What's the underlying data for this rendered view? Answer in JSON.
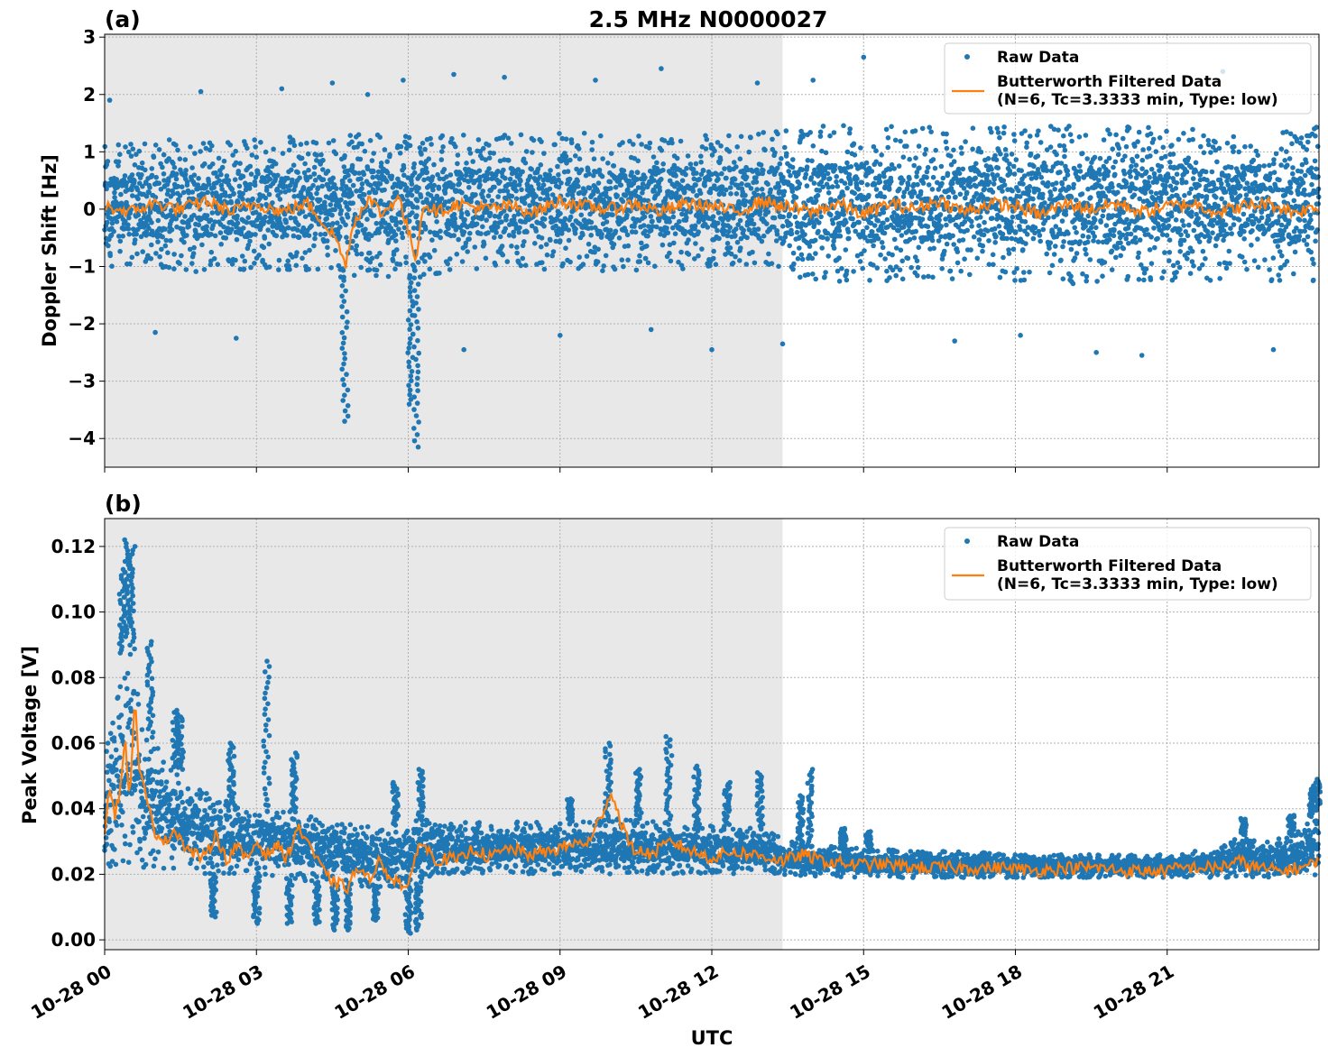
{
  "title": "2.5 MHz N0000027",
  "colors": {
    "raw": "#1f77b4",
    "filtered": "#ff7f0e",
    "shade": "#e8e8e8",
    "grid": "#b0b0b0"
  },
  "chart_data": [
    {
      "type": "scatter",
      "panel_label": "(a)",
      "title": "2.5 MHz N0000027",
      "ylabel": "Doppler Shift [Hz]",
      "xlabel": "",
      "x_unit": "hours since 10-28 00 UTC",
      "xlim": [
        0,
        24
      ],
      "ylim": [
        -4.5,
        3.05
      ],
      "yticks": [
        3,
        2,
        1,
        0,
        -1,
        -2,
        -3,
        -4
      ],
      "ytick_labels": [
        "3",
        "2",
        "1",
        "0",
        "−1",
        "−2",
        "−3",
        "−4"
      ],
      "grid": true,
      "shaded_region": [
        0,
        13.4
      ],
      "legend": {
        "position": "upper right",
        "entries": [
          {
            "label": "Raw Data",
            "marker": "point"
          },
          {
            "label": "Butterworth Filtered Data\n(N=6, Tc=3.3333 min, Type: low)",
            "marker": "line"
          }
        ]
      },
      "series": [
        {
          "name": "Raw Data",
          "style": "points",
          "band_x": [
            0,
            1,
            2,
            3,
            4,
            4.6,
            5,
            6,
            6.2,
            7,
            8,
            9,
            10,
            11,
            12,
            13,
            13.4,
            14,
            15,
            16,
            17,
            18,
            19,
            20,
            21,
            22,
            23,
            24
          ],
          "band_low": [
            -1.0,
            -1.05,
            -1.1,
            -1.05,
            -1.1,
            -1.3,
            -1.15,
            -1.2,
            -1.2,
            -1.05,
            -1.05,
            -1.05,
            -1.1,
            -1.05,
            -1.05,
            -1.1,
            -1.15,
            -1.25,
            -1.3,
            -1.25,
            -1.25,
            -1.25,
            -1.3,
            -1.3,
            -1.25,
            -1.25,
            -1.25,
            -1.25
          ],
          "band_high": [
            1.1,
            1.2,
            1.25,
            1.25,
            1.3,
            1.3,
            1.3,
            1.35,
            1.3,
            1.3,
            1.3,
            1.35,
            1.3,
            1.3,
            1.3,
            1.35,
            1.4,
            1.45,
            1.5,
            1.45,
            1.45,
            1.45,
            1.45,
            1.45,
            1.45,
            1.45,
            1.45,
            1.45
          ],
          "dips": [
            {
              "x": 4.75,
              "y": -3.7
            },
            {
              "x": 6.05,
              "y": -3.4
            },
            {
              "x": 6.15,
              "y": -4.15
            }
          ],
          "outliers": [
            {
              "x": 0.1,
              "y": 1.9
            },
            {
              "x": 1.0,
              "y": -2.15
            },
            {
              "x": 1.9,
              "y": 2.05
            },
            {
              "x": 2.6,
              "y": -2.25
            },
            {
              "x": 3.5,
              "y": 2.1
            },
            {
              "x": 4.5,
              "y": 2.2
            },
            {
              "x": 5.2,
              "y": 2.0
            },
            {
              "x": 5.9,
              "y": 2.25
            },
            {
              "x": 6.9,
              "y": 2.35
            },
            {
              "x": 7.1,
              "y": -2.45
            },
            {
              "x": 7.9,
              "y": 2.3
            },
            {
              "x": 9.0,
              "y": -2.2
            },
            {
              "x": 9.7,
              "y": 2.25
            },
            {
              "x": 10.8,
              "y": -2.1
            },
            {
              "x": 11.0,
              "y": 2.45
            },
            {
              "x": 12.0,
              "y": -2.45
            },
            {
              "x": 12.9,
              "y": 2.2
            },
            {
              "x": 13.4,
              "y": -2.35
            },
            {
              "x": 14.0,
              "y": 2.25
            },
            {
              "x": 15.0,
              "y": 2.65
            },
            {
              "x": 16.8,
              "y": -2.3
            },
            {
              "x": 18.1,
              "y": -2.2
            },
            {
              "x": 19.6,
              "y": -2.5
            },
            {
              "x": 20.5,
              "y": -2.55
            },
            {
              "x": 22.1,
              "y": 2.4
            },
            {
              "x": 23.1,
              "y": -2.45
            }
          ]
        },
        {
          "name": "Butterworth Filtered Data\n(N=6, Tc=3.3333 min, Type: low)",
          "style": "line",
          "x": [
            0,
            0.5,
            1,
            1.5,
            2,
            2.5,
            3,
            3.5,
            4,
            4.3,
            4.6,
            4.75,
            4.9,
            5.2,
            5.5,
            5.8,
            6.0,
            6.15,
            6.3,
            6.6,
            7,
            7.5,
            8,
            8.5,
            9,
            9.5,
            10,
            10.5,
            11,
            11.5,
            12,
            12.5,
            13,
            13.4,
            14,
            14.5,
            15,
            15.5,
            16,
            16.5,
            17,
            17.5,
            18,
            18.5,
            19,
            19.5,
            20,
            20.5,
            21,
            21.5,
            22,
            22.5,
            23,
            23.5,
            24
          ],
          "y": [
            0.05,
            -0.05,
            0.1,
            0.0,
            0.15,
            -0.05,
            0.1,
            -0.05,
            0.1,
            -0.2,
            -0.55,
            -1.0,
            -0.3,
            0.2,
            -0.1,
            0.25,
            -0.4,
            -0.85,
            0.1,
            -0.05,
            0.1,
            0.0,
            0.05,
            -0.05,
            0.15,
            0.05,
            0.0,
            0.1,
            -0.05,
            0.1,
            0.05,
            -0.05,
            0.15,
            0.05,
            -0.05,
            0.1,
            -0.1,
            0.1,
            0.0,
            0.15,
            -0.05,
            0.1,
            0.05,
            -0.1,
            0.1,
            0.0,
            0.1,
            -0.05,
            0.05,
            0.1,
            -0.05,
            0.05,
            0.1,
            -0.05,
            0.05
          ]
        }
      ]
    },
    {
      "type": "scatter",
      "panel_label": "(b)",
      "title": "",
      "ylabel": "Peak Voltage [V]",
      "xlabel": "UTC",
      "x_unit": "hours since 10-28 00 UTC",
      "xlim": [
        0,
        24
      ],
      "ylim": [
        -0.003,
        0.1285
      ],
      "yticks": [
        0.12,
        0.1,
        0.08,
        0.06,
        0.04,
        0.02,
        0.0
      ],
      "ytick_labels": [
        "0.12",
        "0.10",
        "0.08",
        "0.06",
        "0.04",
        "0.02",
        "0.00"
      ],
      "xticks": [
        0,
        3,
        6,
        9,
        12,
        15,
        18,
        21
      ],
      "xtick_labels": [
        "10-28 00",
        "10-28 03",
        "10-28 06",
        "10-28 09",
        "10-28 12",
        "10-28 15",
        "10-28 18",
        "10-28 21"
      ],
      "grid": true,
      "shaded_region": [
        0,
        13.4
      ],
      "legend": {
        "position": "upper right",
        "entries": [
          {
            "label": "Raw Data",
            "marker": "point"
          },
          {
            "label": "Butterworth Filtered Data\n(N=6, Tc=3.3333 min, Type: low)",
            "marker": "line"
          }
        ]
      },
      "series": [
        {
          "name": "Raw Data",
          "style": "points",
          "band_x": [
            0,
            0.3,
            0.5,
            0.7,
            1.0,
            1.5,
            2.0,
            2.5,
            3.0,
            3.5,
            4.0,
            4.5,
            5.0,
            5.5,
            6.0,
            6.5,
            7,
            8,
            9,
            10,
            11,
            12,
            13,
            13.4,
            14,
            15,
            16,
            17,
            18,
            19,
            20,
            21,
            22,
            22.5,
            23,
            23.5,
            24
          ],
          "band_low": [
            0.021,
            0.022,
            0.023,
            0.022,
            0.021,
            0.02,
            0.02,
            0.02,
            0.019,
            0.019,
            0.018,
            0.017,
            0.016,
            0.016,
            0.016,
            0.02,
            0.02,
            0.02,
            0.02,
            0.02,
            0.02,
            0.02,
            0.02,
            0.02,
            0.019,
            0.019,
            0.019,
            0.019,
            0.019,
            0.019,
            0.019,
            0.019,
            0.019,
            0.019,
            0.019,
            0.019,
            0.019
          ],
          "band_high": [
            0.058,
            0.085,
            0.095,
            0.07,
            0.06,
            0.052,
            0.045,
            0.042,
            0.042,
            0.04,
            0.038,
            0.036,
            0.035,
            0.034,
            0.036,
            0.037,
            0.036,
            0.036,
            0.036,
            0.037,
            0.036,
            0.035,
            0.034,
            0.031,
            0.029,
            0.028,
            0.027,
            0.027,
            0.026,
            0.026,
            0.026,
            0.026,
            0.028,
            0.032,
            0.03,
            0.032,
            0.04
          ],
          "spikes": [
            {
              "x": 0.35,
              "y": 0.113
            },
            {
              "x": 0.45,
              "y": 0.122
            },
            {
              "x": 0.55,
              "y": 0.12
            },
            {
              "x": 0.9,
              "y": 0.091
            },
            {
              "x": 1.4,
              "y": 0.07
            },
            {
              "x": 1.5,
              "y": 0.068
            },
            {
              "x": 2.5,
              "y": 0.06
            },
            {
              "x": 3.2,
              "y": 0.085
            },
            {
              "x": 3.75,
              "y": 0.057
            },
            {
              "x": 5.75,
              "y": 0.048
            },
            {
              "x": 6.25,
              "y": 0.052
            },
            {
              "x": 9.2,
              "y": 0.043
            },
            {
              "x": 9.95,
              "y": 0.06
            },
            {
              "x": 10.55,
              "y": 0.052
            },
            {
              "x": 11.15,
              "y": 0.062
            },
            {
              "x": 11.7,
              "y": 0.053
            },
            {
              "x": 12.3,
              "y": 0.048
            },
            {
              "x": 12.95,
              "y": 0.051
            },
            {
              "x": 13.75,
              "y": 0.044
            },
            {
              "x": 13.95,
              "y": 0.052
            },
            {
              "x": 14.6,
              "y": 0.034
            },
            {
              "x": 15.1,
              "y": 0.033
            },
            {
              "x": 22.5,
              "y": 0.037
            },
            {
              "x": 23.45,
              "y": 0.038
            },
            {
              "x": 23.85,
              "y": 0.047
            },
            {
              "x": 23.97,
              "y": 0.049
            }
          ],
          "dips": [
            {
              "x": 2.15,
              "y": 0.007
            },
            {
              "x": 3.0,
              "y": 0.005
            },
            {
              "x": 3.65,
              "y": 0.005
            },
            {
              "x": 4.2,
              "y": 0.005
            },
            {
              "x": 4.55,
              "y": 0.003
            },
            {
              "x": 4.8,
              "y": 0.003
            },
            {
              "x": 5.35,
              "y": 0.006
            },
            {
              "x": 6.0,
              "y": 0.002
            },
            {
              "x": 6.2,
              "y": 0.003
            }
          ]
        },
        {
          "name": "Butterworth Filtered Data\n(N=6, Tc=3.3333 min, Type: low)",
          "style": "line",
          "x": [
            0,
            0.1,
            0.2,
            0.3,
            0.4,
            0.5,
            0.6,
            0.7,
            0.8,
            0.9,
            1.0,
            1.2,
            1.4,
            1.6,
            1.8,
            2.0,
            2.2,
            2.4,
            2.6,
            2.8,
            3.0,
            3.2,
            3.4,
            3.6,
            3.8,
            4.0,
            4.2,
            4.4,
            4.6,
            4.8,
            5.0,
            5.2,
            5.4,
            5.6,
            5.8,
            6.0,
            6.2,
            6.4,
            6.6,
            6.8,
            7.0,
            7.3,
            7.6,
            8.0,
            8.4,
            8.8,
            9.2,
            9.6,
            10.0,
            10.4,
            10.8,
            11.2,
            11.6,
            12.0,
            12.4,
            12.8,
            13.2,
            13.4,
            13.8,
            14.2,
            14.8,
            15.4,
            16.0,
            16.6,
            17.2,
            17.8,
            18.4,
            19.0,
            19.6,
            20.2,
            20.8,
            21.4,
            22.0,
            22.4,
            22.8,
            23.2,
            23.6,
            23.9,
            24
          ],
          "y": [
            0.034,
            0.047,
            0.038,
            0.045,
            0.062,
            0.042,
            0.074,
            0.05,
            0.045,
            0.038,
            0.033,
            0.03,
            0.034,
            0.028,
            0.026,
            0.025,
            0.033,
            0.024,
            0.029,
            0.024,
            0.03,
            0.026,
            0.029,
            0.025,
            0.034,
            0.031,
            0.024,
            0.019,
            0.017,
            0.016,
            0.022,
            0.018,
            0.024,
            0.02,
            0.018,
            0.015,
            0.03,
            0.027,
            0.024,
            0.025,
            0.024,
            0.028,
            0.025,
            0.028,
            0.026,
            0.027,
            0.029,
            0.03,
            0.045,
            0.028,
            0.026,
            0.03,
            0.027,
            0.025,
            0.027,
            0.026,
            0.025,
            0.024,
            0.026,
            0.024,
            0.023,
            0.023,
            0.022,
            0.022,
            0.022,
            0.022,
            0.021,
            0.022,
            0.022,
            0.021,
            0.021,
            0.022,
            0.022,
            0.024,
            0.022,
            0.021,
            0.022,
            0.023,
            0.026
          ]
        }
      ]
    }
  ]
}
